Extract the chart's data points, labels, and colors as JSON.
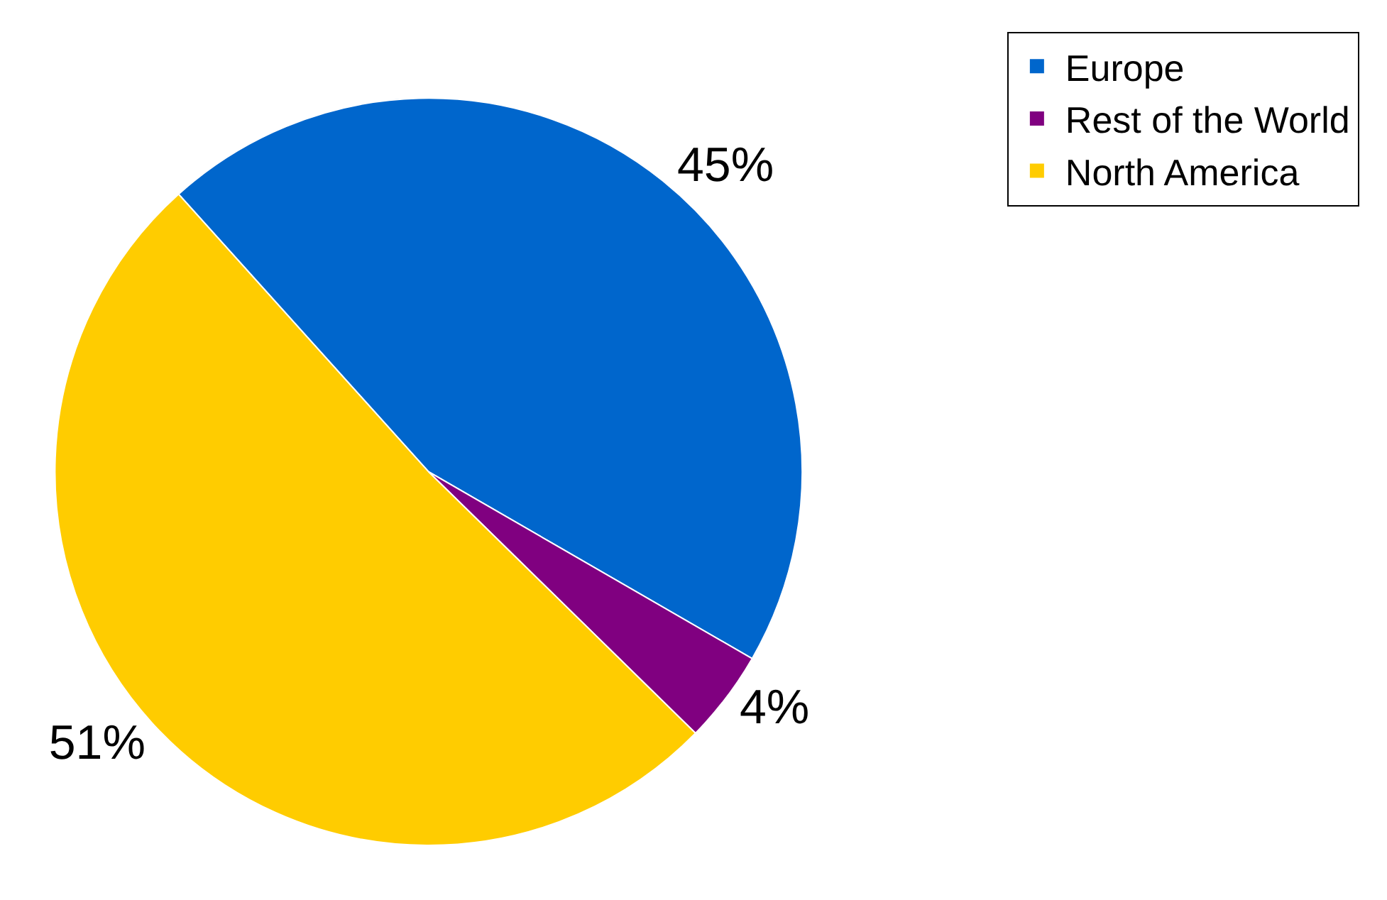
{
  "chart_data": {
    "type": "pie",
    "categories": [
      "Europe",
      "Rest of the World",
      "North America"
    ],
    "values": [
      45,
      4,
      51
    ],
    "colors": [
      "#0066cc",
      "#800080",
      "#ffcc00"
    ],
    "value_labels": [
      "45%",
      "4%",
      "51%"
    ],
    "legend": "top right"
  }
}
